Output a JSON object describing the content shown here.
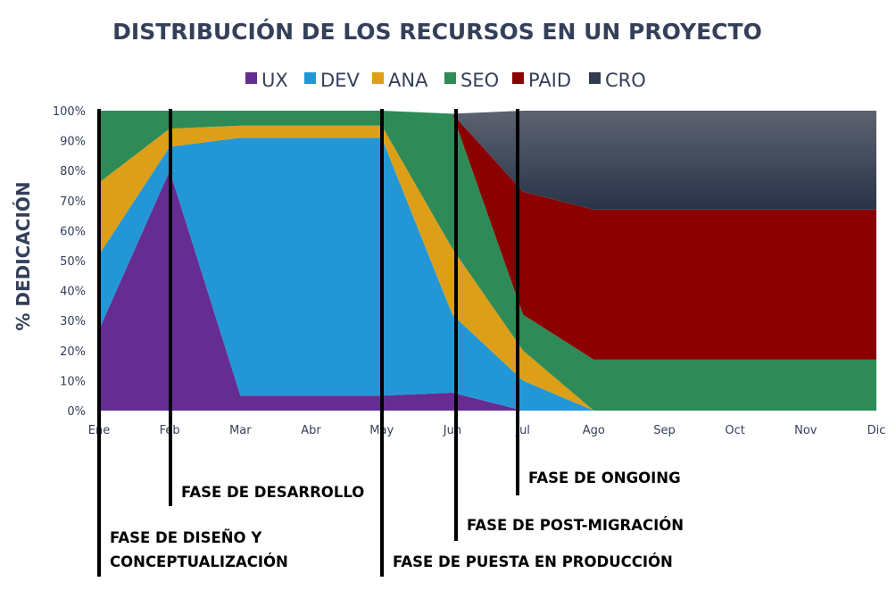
{
  "chart_data": {
    "type": "area",
    "title": "DISTRIBUCIÓN DE LOS RECURSOS EN UN PROYECTO",
    "ylabel": "% DEDICACIÓN",
    "xlabel": "",
    "categories": [
      "Ene",
      "Feb",
      "Mar",
      "Abr",
      "May",
      "Jun",
      "Jul",
      "Ago",
      "Sep",
      "Oct",
      "Nov",
      "Dic"
    ],
    "yticks": [
      "0%",
      "10%",
      "20%",
      "30%",
      "40%",
      "50%",
      "60%",
      "70%",
      "80%",
      "90%",
      "100%"
    ],
    "ylim": [
      0,
      100
    ],
    "stacked": true,
    "legend_position": "top",
    "series": [
      {
        "name": "UX",
        "color": "#652d91",
        "values": [
          27,
          80,
          5,
          5,
          5,
          6,
          0,
          0,
          0,
          0,
          0,
          0
        ]
      },
      {
        "name": "DEV",
        "color": "#2397d6",
        "values": [
          25,
          8,
          86,
          86,
          86,
          26,
          10,
          0,
          0,
          0,
          0,
          0
        ]
      },
      {
        "name": "ANA",
        "color": "#dd9f17",
        "values": [
          24,
          6,
          4,
          4,
          4,
          22,
          10,
          0,
          0,
          0,
          0,
          0
        ]
      },
      {
        "name": "SEO",
        "color": "#2e8b57",
        "values": [
          24,
          6,
          5,
          5,
          5,
          45,
          12,
          17,
          17,
          17,
          17,
          17
        ]
      },
      {
        "name": "PAID",
        "color": "#8b0000",
        "values": [
          0,
          0,
          0,
          0,
          0,
          0,
          41,
          50,
          50,
          50,
          50,
          50
        ]
      },
      {
        "name": "CRO",
        "color": "#313b52",
        "values": [
          0,
          0,
          0,
          0,
          0,
          0,
          27,
          33,
          33,
          33,
          33,
          33
        ]
      }
    ],
    "phases": [
      {
        "month_index": 0,
        "lines": [
          "FASE DE DISEÑO Y",
          "CONCEPTUALIZACIÓN"
        ]
      },
      {
        "month_index": 1,
        "lines": [
          "FASE DE DESARROLLO"
        ]
      },
      {
        "month_index": 4,
        "lines": [
          "FASE DE PUESTA EN PRODUCCIÓN"
        ]
      },
      {
        "month_index": 5,
        "lines": [
          "FASE DE POST-MIGRACIÓN"
        ]
      },
      {
        "month_index": 6,
        "lines": [
          "FASE DE ONGOING"
        ]
      }
    ]
  }
}
